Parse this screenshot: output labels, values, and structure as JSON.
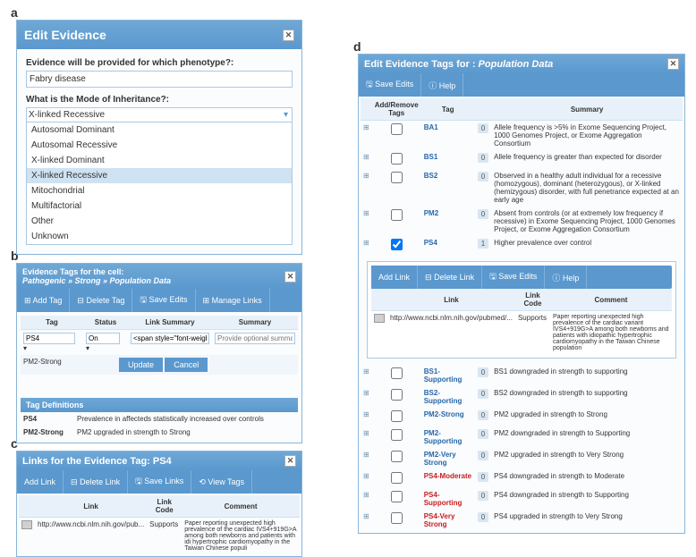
{
  "labels": {
    "a": "a",
    "b": "b",
    "c": "c",
    "d": "d"
  },
  "panelA": {
    "title": "Edit Evidence",
    "q1": "Evidence will be provided for which phenotype?:",
    "phenotype": "Fabry disease",
    "q2": "What is the Mode of Inheritance?:",
    "selected": "X-linked Recessive",
    "options": [
      "Autosomal Dominant",
      "Autosomal Recessive",
      "X-linked Dominant",
      "X-linked Recessive",
      "Mitochondrial",
      "Multifactorial",
      "Other",
      "Unknown"
    ]
  },
  "panelB": {
    "title1": "Evidence Tags for the cell:",
    "title2": "Pathogenic » Strong » Population Data",
    "tb": [
      "Add Tag",
      "Delete Tag",
      "Save Edits",
      "Manage Links"
    ],
    "cols": [
      "Tag",
      "Status",
      "Link Summary",
      "Summary"
    ],
    "row1": {
      "tag": "PS4",
      "status": "On",
      "ls": "<span style=\"font-weight:b",
      "ph": "Provide optional summary/co"
    },
    "row2": "PM2-Strong",
    "btns": {
      "u": "Update",
      "c": "Cancel"
    },
    "defTitle": "Tag Definitions",
    "defs": [
      {
        "t": "PS4",
        "d": "Prevalence in affecteds statistically increased over controls"
      },
      {
        "t": "PM2-Strong",
        "d": "PM2 upgraded in strength to Strong"
      }
    ]
  },
  "panelC": {
    "title": "Links for the Evidence Tag: PS4",
    "tb": [
      "Add Link",
      "Delete Link",
      "Save Links",
      "View Tags"
    ],
    "cols": [
      "Link",
      "Link Code",
      "Comment"
    ],
    "row": {
      "link": "http://www.ncbi.nlm.nih.gov/pub...",
      "code": "Supports",
      "cmt": "Paper reporting unexpected high prevalence of the cardiac IVS4+919G>A among both newborns and patients with idi hypertrophic cardiomyopathy in the Taiwan Chinese populi"
    }
  },
  "panelD": {
    "title": "Edit Evidence Tags for : Population Data",
    "tb": [
      "Save Edits",
      "Help"
    ],
    "cols": {
      "ar": "Add/Remove Tags",
      "tag": "Tag",
      "sum": "Summary"
    },
    "rows": [
      {
        "t": "BA1",
        "c": "b",
        "n": "0",
        "chk": false,
        "s": "Allele frequency is >5% in Exome Sequencing Project, 1000 Genomes Project, or Exome Aggregation Consortium"
      },
      {
        "t": "BS1",
        "c": "b",
        "n": "0",
        "chk": false,
        "s": "Allele frequency is greater than expected for disorder"
      },
      {
        "t": "BS2",
        "c": "b",
        "n": "0",
        "chk": false,
        "s": "Observed in a healthy adult individual for a recessive (homozygous), dominant (heterozygous), or X-linked (hemizygous) disorder, with full penetrance expected at an early age"
      },
      {
        "t": "PM2",
        "c": "b",
        "n": "0",
        "chk": false,
        "s": "Absent from controls (or at extremely low frequency if recessive) in Exome Sequencing Project, 1000 Genomes Project, or Exome Aggregation Consortium"
      },
      {
        "t": "PS4",
        "c": "b",
        "n": "1",
        "chk": true,
        "s": "Higher prevalence over control",
        "expanded": true
      }
    ],
    "sub": {
      "tb": [
        "Add Link",
        "Delete Link",
        "Save Edits",
        "Help"
      ],
      "cols": [
        "Link",
        "Link Code",
        "Comment"
      ],
      "row": {
        "link": "http://www.ncbi.nlm.nih.gov/pubmed/...",
        "code": "Supports",
        "cmt": "Paper reporting unexpected high prevalence of the cardiac variant IVS4+919G>A among both newborns and patients with idiopathic hypertrophic cardiomyopathy in the Taiwan Chinese population"
      }
    },
    "rows2": [
      {
        "t": "BS1-Supporting",
        "c": "b",
        "n": "0",
        "s": "BS1 downgraded in strength to supporting"
      },
      {
        "t": "BS2-Supporting",
        "c": "b",
        "n": "0",
        "s": "BS2 downgraded in strength to supporting"
      },
      {
        "t": "PM2-Strong",
        "c": "b",
        "n": "0",
        "s": "PM2 upgraded in strength to Strong"
      },
      {
        "t": "PM2-Supporting",
        "c": "b",
        "n": "0",
        "s": "PM2 downgraded in strength to Supporting"
      },
      {
        "t": "PM2-Very Strong",
        "c": "b",
        "n": "0",
        "s": "PM2 upgraded in strength to Very Strong"
      },
      {
        "t": "PS4-Moderate",
        "c": "r",
        "n": "0",
        "s": "PS4 downgraded in strength to Moderate"
      },
      {
        "t": "PS4-Supporting",
        "c": "r",
        "n": "0",
        "s": "PS4 downgraded in strength to Supporting"
      },
      {
        "t": "PS4-Very Strong",
        "c": "r",
        "n": "0",
        "s": "PS4 upgraded in strength to Very Strong"
      }
    ]
  }
}
